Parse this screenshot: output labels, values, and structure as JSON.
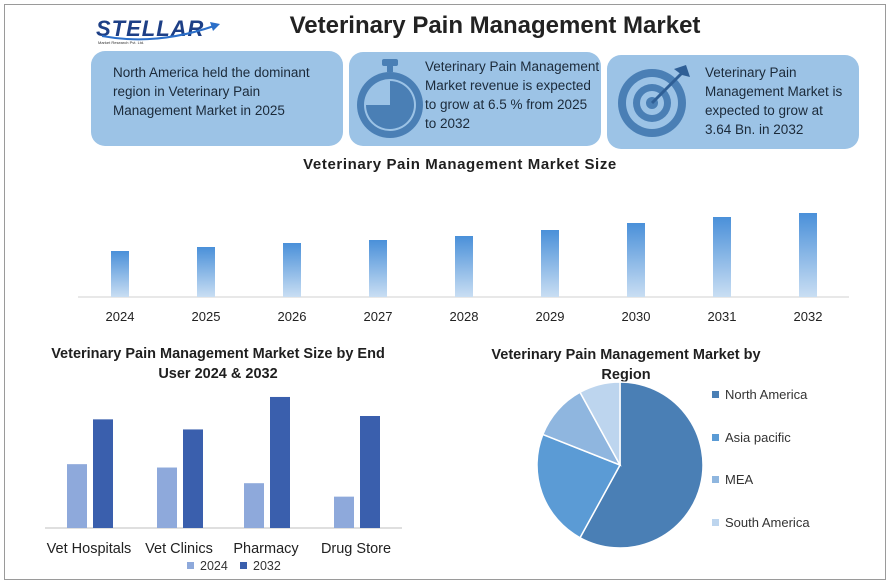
{
  "logo": {
    "name": "STELLAR",
    "tagline": "Market Research Pvt. Ltd."
  },
  "title": "Veterinary Pain Management Market",
  "cards": [
    {
      "text": "North America held the dominant region in Veterinary Pain Management Market in 2025",
      "icon": "none"
    },
    {
      "text": "Veterinary Pain Management Market revenue is expected to grow at 6.5 % from 2025 to 2032",
      "icon": "stopwatch-icon"
    },
    {
      "text": "Veterinary Pain Management Market is expected to grow at 3.64 Bn. in 2032",
      "icon": "target-icon"
    }
  ],
  "colors": {
    "card": "#9cc3e6",
    "icon": "#4a7fb5",
    "bar_2024": "#8ea9db",
    "bar_2032": "#3a5fad"
  },
  "chart_data": [
    {
      "type": "bar",
      "title": "Veterinary Pain Management Market Size",
      "categories": [
        "2024",
        "2025",
        "2026",
        "2027",
        "2028",
        "2029",
        "2030",
        "2031",
        "2032"
      ],
      "values": [
        46,
        50,
        54,
        57,
        61,
        67,
        74,
        80,
        84
      ],
      "xlabel": "",
      "ylabel": "",
      "ylim": [
        0,
        100
      ],
      "grid": false
    },
    {
      "type": "bar",
      "title": "Veterinary Pain Management Market Size by End User 2024 & 2032",
      "categories": [
        "Vet Hospitals",
        "Vet Clinics",
        "Pharmacy",
        "Drug Store"
      ],
      "series": [
        {
          "name": "2024",
          "values": [
            57,
            54,
            40,
            28
          ]
        },
        {
          "name": "2032",
          "values": [
            97,
            88,
            117,
            100
          ]
        }
      ],
      "ylim": [
        0,
        125
      ],
      "legend": "bottom",
      "grid": false
    },
    {
      "type": "pie",
      "title": "Veterinary Pain Management Market by Region",
      "labels": [
        "North America",
        "Asia pacific",
        "MEA",
        "South America"
      ],
      "values": [
        58,
        23,
        11,
        8
      ],
      "colors": [
        "#4a7fb5",
        "#5b9bd5",
        "#8fb6df",
        "#bdd5ee"
      ],
      "legend": "right"
    }
  ]
}
